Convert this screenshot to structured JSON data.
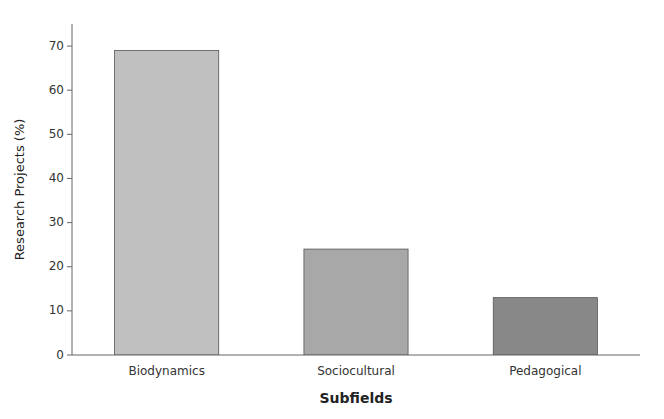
{
  "chart_data": {
    "type": "bar",
    "categories": [
      "Biodynamics",
      "Sociocultural",
      "Pedagogical"
    ],
    "values": [
      69,
      24,
      13
    ],
    "colors": [
      "#c0c0c0",
      "#a8a8a8",
      "#888888"
    ],
    "xlabel": "Subfields",
    "ylabel": "Research Projects (%)",
    "ylim": [
      0,
      75
    ],
    "yticks": [
      0,
      10,
      20,
      30,
      40,
      50,
      60,
      70
    ],
    "grid": false
  }
}
